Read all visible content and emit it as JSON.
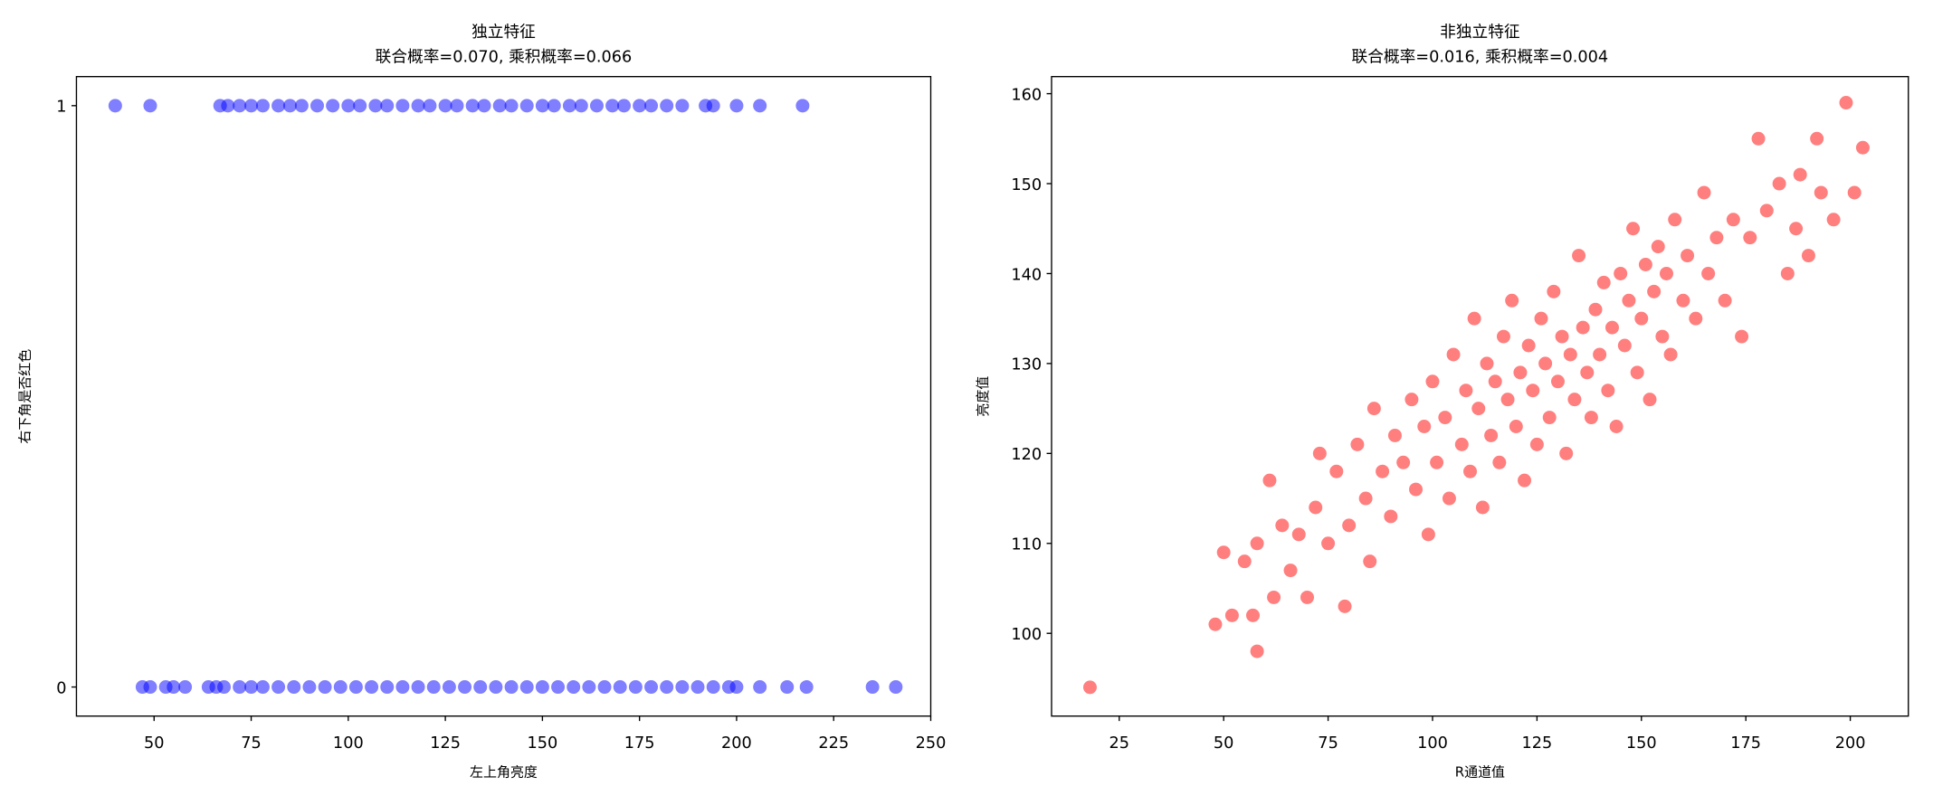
{
  "chart_data": [
    {
      "type": "scatter",
      "title": "独立特征",
      "subtitle": "联合概率=0.070, 乘积概率=0.066",
      "xlabel": "左上角亮度",
      "ylabel": "右下角是否红色",
      "color": "#0000ff",
      "opacity": 0.5,
      "x": [
        40,
        49,
        67,
        69,
        72,
        75,
        78,
        82,
        85,
        88,
        92,
        96,
        100,
        103,
        107,
        110,
        114,
        118,
        121,
        125,
        128,
        132,
        135,
        139,
        142,
        146,
        150,
        153,
        157,
        160,
        164,
        168,
        171,
        175,
        178,
        182,
        186,
        192,
        194,
        200,
        206,
        217,
        47,
        49,
        53,
        55,
        58,
        64,
        66,
        68,
        72,
        75,
        78,
        82,
        86,
        90,
        94,
        98,
        102,
        106,
        110,
        114,
        118,
        122,
        126,
        130,
        134,
        138,
        142,
        146,
        150,
        154,
        158,
        162,
        166,
        170,
        174,
        178,
        182,
        186,
        190,
        194,
        198,
        200,
        206,
        213,
        218,
        235,
        241
      ],
      "values": [
        1,
        1,
        1,
        1,
        1,
        1,
        1,
        1,
        1,
        1,
        1,
        1,
        1,
        1,
        1,
        1,
        1,
        1,
        1,
        1,
        1,
        1,
        1,
        1,
        1,
        1,
        1,
        1,
        1,
        1,
        1,
        1,
        1,
        1,
        1,
        1,
        1,
        1,
        1,
        1,
        1,
        1,
        0,
        0,
        0,
        0,
        0,
        0,
        0,
        0,
        0,
        0,
        0,
        0,
        0,
        0,
        0,
        0,
        0,
        0,
        0,
        0,
        0,
        0,
        0,
        0,
        0,
        0,
        0,
        0,
        0,
        0,
        0,
        0,
        0,
        0,
        0,
        0,
        0,
        0,
        0,
        0,
        0,
        0,
        0,
        0,
        0,
        0,
        0
      ],
      "xlim": [
        30,
        250
      ],
      "ylim": [
        -0.05,
        1.05
      ],
      "xticks": [
        50,
        75,
        100,
        125,
        150,
        175,
        200,
        225,
        250
      ],
      "yticks": [
        0,
        1
      ]
    },
    {
      "type": "scatter",
      "title": "非独立特征",
      "subtitle": "联合概率=0.016, 乘积概率=0.004",
      "xlabel": "R通道值",
      "ylabel": "亮度值",
      "color": "#ff0000",
      "opacity": 0.5,
      "x": [
        18,
        48,
        50,
        52,
        55,
        57,
        58,
        58,
        61,
        62,
        64,
        66,
        68,
        70,
        72,
        73,
        75,
        77,
        79,
        80,
        82,
        84,
        85,
        86,
        88,
        90,
        91,
        93,
        95,
        96,
        98,
        99,
        100,
        101,
        103,
        104,
        105,
        107,
        108,
        109,
        110,
        111,
        112,
        113,
        114,
        115,
        116,
        117,
        118,
        119,
        120,
        121,
        122,
        123,
        124,
        125,
        126,
        127,
        128,
        129,
        130,
        131,
        132,
        133,
        134,
        135,
        136,
        137,
        138,
        139,
        140,
        141,
        142,
        143,
        144,
        145,
        146,
        147,
        148,
        149,
        150,
        151,
        152,
        153,
        154,
        155,
        156,
        157,
        158,
        160,
        161,
        163,
        165,
        166,
        168,
        170,
        172,
        174,
        176,
        178,
        180,
        183,
        185,
        187,
        188,
        190,
        192,
        193,
        196,
        199,
        201,
        203
      ],
      "values": [
        94,
        101,
        109,
        102,
        108,
        102,
        98,
        110,
        117,
        104,
        112,
        107,
        111,
        104,
        114,
        120,
        110,
        118,
        103,
        112,
        121,
        115,
        108,
        125,
        118,
        113,
        122,
        119,
        126,
        116,
        123,
        111,
        128,
        119,
        124,
        115,
        131,
        121,
        127,
        118,
        135,
        125,
        114,
        130,
        122,
        128,
        119,
        133,
        126,
        137,
        123,
        129,
        117,
        132,
        127,
        121,
        135,
        130,
        124,
        138,
        128,
        133,
        120,
        131,
        126,
        142,
        134,
        129,
        124,
        136,
        131,
        139,
        127,
        134,
        123,
        140,
        132,
        137,
        145,
        129,
        135,
        141,
        126,
        138,
        143,
        133,
        140,
        131,
        146,
        137,
        142,
        135,
        149,
        140,
        144,
        137,
        146,
        133,
        144,
        155,
        147,
        150,
        140,
        145,
        151,
        142,
        155,
        149,
        146,
        159,
        149,
        154
      ],
      "xlim": [
        8.8,
        213.9
      ],
      "ylim": [
        90.8,
        161.9
      ],
      "xticks": [
        25,
        50,
        75,
        100,
        125,
        150,
        175,
        200
      ],
      "yticks": [
        100,
        110,
        120,
        130,
        140,
        150,
        160
      ]
    }
  ]
}
